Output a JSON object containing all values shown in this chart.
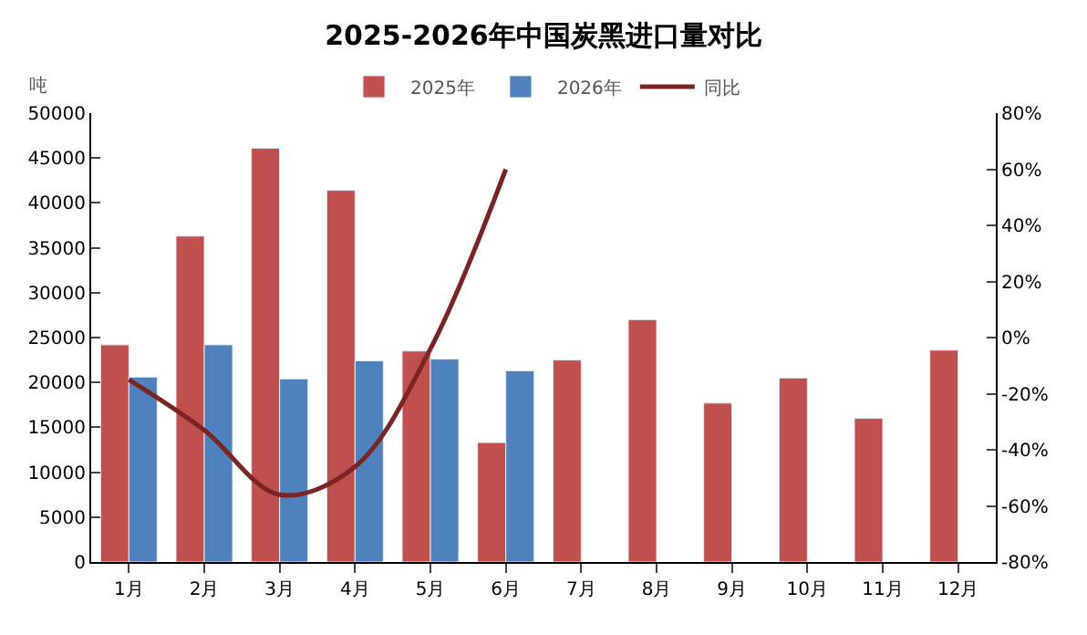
{
  "chart_data": {
    "type": "bar",
    "title": "2025-2026年中国炭黑进口量对比",
    "ylabel": "吨",
    "categories": [
      "1月",
      "2月",
      "3月",
      "4月",
      "5月",
      "6月",
      "7月",
      "8月",
      "9月",
      "10月",
      "11月",
      "12月"
    ],
    "series": [
      {
        "name": "2025年",
        "color": "#c0504d",
        "values": [
          24200,
          36300,
          46100,
          41400,
          23500,
          13300,
          22500,
          27000,
          17700,
          20500,
          16000,
          23600
        ]
      },
      {
        "name": "2026年",
        "color": "#4f81bd",
        "values": [
          20600,
          24200,
          20400,
          22400,
          22600,
          21300,
          null,
          null,
          null,
          null,
          null,
          null
        ]
      },
      {
        "name": "同比",
        "type": "line",
        "axis": "y2",
        "color": "#7b2424",
        "values": [
          -15,
          -33,
          -56,
          -46,
          -4,
          60,
          null,
          null,
          null,
          null,
          null,
          null
        ]
      }
    ],
    "ylim": [
      0,
      50000
    ],
    "yticks": [
      0,
      5000,
      10000,
      15000,
      20000,
      25000,
      30000,
      35000,
      40000,
      45000,
      50000
    ],
    "y2lim": [
      -80,
      80
    ],
    "y2ticks": [
      {
        "value": -80,
        "label": "-80%"
      },
      {
        "value": -60,
        "label": "-60%"
      },
      {
        "value": -40,
        "label": "-40%"
      },
      {
        "value": -20,
        "label": "-20%"
      },
      {
        "value": 0,
        "label": "0%"
      },
      {
        "value": 20,
        "label": "20%"
      },
      {
        "value": 40,
        "label": "40%"
      },
      {
        "value": 60,
        "label": "60%"
      },
      {
        "value": 80,
        "label": "80%"
      }
    ],
    "legend": "top",
    "marker": "none",
    "line_style": "solid"
  }
}
